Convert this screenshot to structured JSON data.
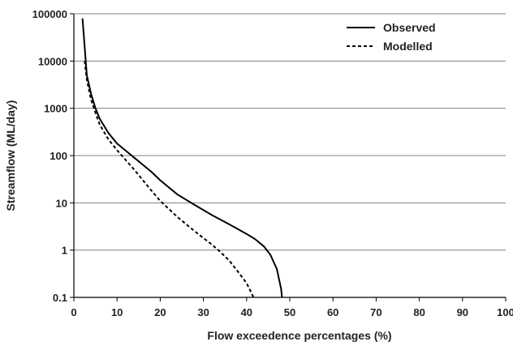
{
  "chart_data": {
    "type": "line",
    "title": "",
    "xlabel": "Flow exceedence percentages (%)",
    "ylabel": "Streamflow (ML/day)",
    "xlim": [
      0,
      100
    ],
    "ylim": [
      0.1,
      100000
    ],
    "yscale": "log",
    "grid": "horizontal",
    "legend_position": "top-right",
    "x_ticks": [
      "0",
      "10",
      "20",
      "30",
      "40",
      "50",
      "60",
      "70",
      "80",
      "90",
      "100"
    ],
    "y_ticks": [
      "0.1",
      "1",
      "10",
      "100",
      "1000",
      "10000",
      "100000"
    ],
    "series": [
      {
        "name": "Observed",
        "style": "solid",
        "points": [
          [
            2.0,
            80000
          ],
          [
            2.5,
            20000
          ],
          [
            3.0,
            5000
          ],
          [
            4.0,
            2000
          ],
          [
            5.0,
            1000
          ],
          [
            6.0,
            600
          ],
          [
            8.0,
            300
          ],
          [
            10.0,
            180
          ],
          [
            14.0,
            90
          ],
          [
            18.0,
            45
          ],
          [
            20.0,
            30
          ],
          [
            24.0,
            15
          ],
          [
            28.0,
            9
          ],
          [
            32.0,
            5.5
          ],
          [
            36.0,
            3.5
          ],
          [
            40.0,
            2.2
          ],
          [
            42.0,
            1.7
          ],
          [
            44.0,
            1.2
          ],
          [
            45.5,
            0.8
          ],
          [
            47.0,
            0.4
          ],
          [
            48.0,
            0.15
          ],
          [
            48.2,
            0.1
          ]
        ]
      },
      {
        "name": "Modelled",
        "style": "dashed",
        "points": [
          [
            2.5,
            10000
          ],
          [
            3.0,
            4000
          ],
          [
            4.0,
            1500
          ],
          [
            5.0,
            800
          ],
          [
            6.0,
            450
          ],
          [
            8.0,
            220
          ],
          [
            10.0,
            130
          ],
          [
            14.0,
            50
          ],
          [
            18.0,
            18
          ],
          [
            20.0,
            11
          ],
          [
            24.0,
            5
          ],
          [
            28.0,
            2.5
          ],
          [
            32.0,
            1.3
          ],
          [
            34.0,
            0.9
          ],
          [
            36.0,
            0.6
          ],
          [
            38.0,
            0.35
          ],
          [
            40.0,
            0.2
          ],
          [
            41.2,
            0.12
          ],
          [
            41.6,
            0.1
          ]
        ]
      }
    ]
  },
  "colors": {
    "line": "#000000",
    "grid": "#808080",
    "text": "#222222"
  }
}
